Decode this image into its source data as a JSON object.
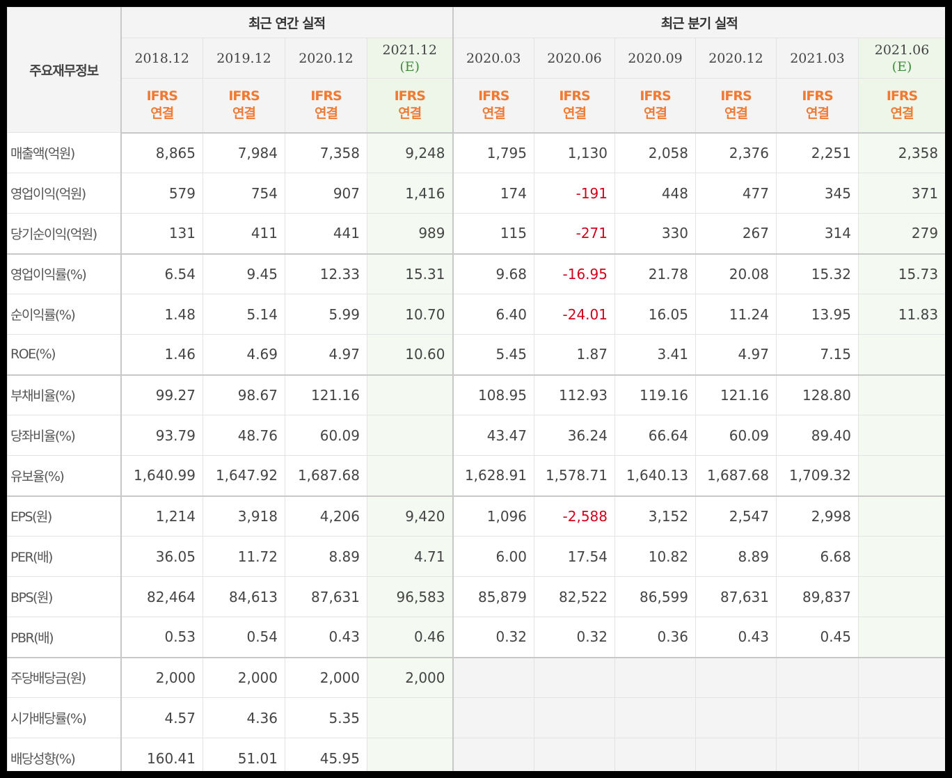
{
  "header": {
    "corner": "주요재무정보",
    "annual_group": "최근 연간 실적",
    "quarter_group": "최근 분기 실적",
    "annual_periods": [
      {
        "label": "2018.12",
        "est": ""
      },
      {
        "label": "2019.12",
        "est": ""
      },
      {
        "label": "2020.12",
        "est": ""
      },
      {
        "label": "2021.12",
        "est": "(E)"
      }
    ],
    "quarter_periods": [
      {
        "label": "2020.03",
        "est": ""
      },
      {
        "label": "2020.06",
        "est": ""
      },
      {
        "label": "2020.09",
        "est": ""
      },
      {
        "label": "2020.12",
        "est": ""
      },
      {
        "label": "2021.03",
        "est": ""
      },
      {
        "label": "2021.06",
        "est": "(E)"
      }
    ],
    "ifrs_line1": "IFRS",
    "ifrs_line2": "연결"
  },
  "rows": [
    {
      "label": "매출액(억원)",
      "values": [
        "8,865",
        "7,984",
        "7,358",
        "9,248",
        "1,795",
        "1,130",
        "2,058",
        "2,376",
        "2,251",
        "2,358"
      ]
    },
    {
      "label": "영업이익(억원)",
      "values": [
        "579",
        "754",
        "907",
        "1,416",
        "174",
        "-191",
        "448",
        "477",
        "345",
        "371"
      ]
    },
    {
      "label": "당기순이익(억원)",
      "values": [
        "131",
        "411",
        "441",
        "989",
        "115",
        "-271",
        "330",
        "267",
        "314",
        "279"
      ]
    },
    {
      "label": "영업이익률(%)",
      "values": [
        "6.54",
        "9.45",
        "12.33",
        "15.31",
        "9.68",
        "-16.95",
        "21.78",
        "20.08",
        "15.32",
        "15.73"
      ]
    },
    {
      "label": "순이익률(%)",
      "values": [
        "1.48",
        "5.14",
        "5.99",
        "10.70",
        "6.40",
        "-24.01",
        "16.05",
        "11.24",
        "13.95",
        "11.83"
      ]
    },
    {
      "label": "ROE(%)",
      "values": [
        "1.46",
        "4.69",
        "4.97",
        "10.60",
        "5.45",
        "1.87",
        "3.41",
        "4.97",
        "7.15",
        ""
      ]
    },
    {
      "label": "부채비율(%)",
      "values": [
        "99.27",
        "98.67",
        "121.16",
        "",
        "108.95",
        "112.93",
        "119.16",
        "121.16",
        "128.80",
        ""
      ]
    },
    {
      "label": "당좌비율(%)",
      "values": [
        "93.79",
        "48.76",
        "60.09",
        "",
        "43.47",
        "36.24",
        "66.64",
        "60.09",
        "89.40",
        ""
      ]
    },
    {
      "label": "유보율(%)",
      "values": [
        "1,640.99",
        "1,647.92",
        "1,687.68",
        "",
        "1,628.91",
        "1,578.71",
        "1,640.13",
        "1,687.68",
        "1,709.32",
        ""
      ]
    },
    {
      "label": "EPS(원)",
      "values": [
        "1,214",
        "3,918",
        "4,206",
        "9,420",
        "1,096",
        "-2,588",
        "3,152",
        "2,547",
        "2,998",
        ""
      ]
    },
    {
      "label": "PER(배)",
      "values": [
        "36.05",
        "11.72",
        "8.89",
        "4.71",
        "6.00",
        "17.54",
        "10.82",
        "8.89",
        "6.68",
        ""
      ]
    },
    {
      "label": "BPS(원)",
      "values": [
        "82,464",
        "84,613",
        "87,631",
        "96,583",
        "85,879",
        "82,522",
        "86,599",
        "87,631",
        "89,837",
        ""
      ]
    },
    {
      "label": "PBR(배)",
      "values": [
        "0.53",
        "0.54",
        "0.43",
        "0.46",
        "0.32",
        "0.32",
        "0.36",
        "0.43",
        "0.45",
        ""
      ]
    },
    {
      "label": "주당배당금(원)",
      "values": [
        "2,000",
        "2,000",
        "2,000",
        "2,000",
        "",
        "",
        "",
        "",
        "",
        ""
      ]
    },
    {
      "label": "시가배당률(%)",
      "values": [
        "4.57",
        "4.36",
        "5.35",
        "",
        "",
        "",
        "",
        "",
        "",
        ""
      ]
    },
    {
      "label": "배당성향(%)",
      "values": [
        "160.41",
        "51.01",
        "45.95",
        "",
        "",
        "",
        "",
        "",
        "",
        ""
      ]
    }
  ],
  "colors": {
    "ifrs": "#ee7a33",
    "estimate_text": "#3f8f3f",
    "estimate_bg": "#f4f9f2",
    "negative": "#d0021b",
    "header_bg": "#f4f4f4"
  }
}
